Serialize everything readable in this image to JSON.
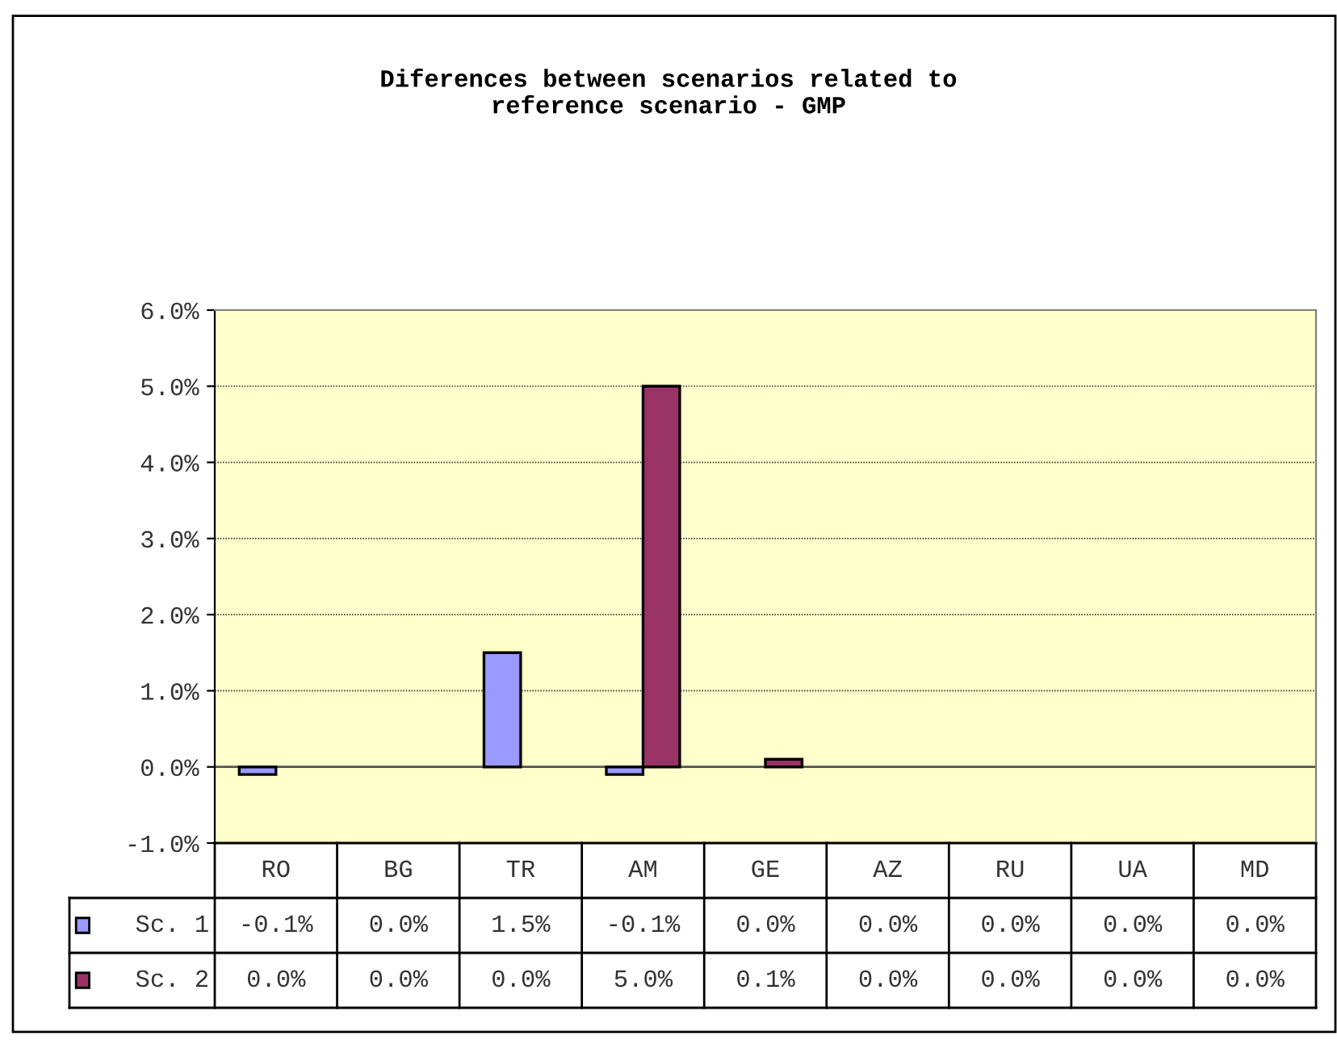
{
  "chart_data": {
    "type": "bar",
    "title": "Diferences between scenarios related to reference scenario - GMP",
    "categories": [
      "RO",
      "BG",
      "TR",
      "AM",
      "GE",
      "AZ",
      "RU",
      "UA",
      "MD"
    ],
    "series": [
      {
        "name": "Sc. 1",
        "color": "#9999ff",
        "values": [
          -0.1,
          0.0,
          1.5,
          -0.1,
          0.0,
          0.0,
          0.0,
          0.0,
          0.0
        ],
        "value_labels": [
          "-0.1%",
          "0.0%",
          "1.5%",
          "-0.1%",
          "0.0%",
          "0.0%",
          "0.0%",
          "0.0%",
          "0.0%"
        ]
      },
      {
        "name": "Sc. 2",
        "color": "#993366",
        "values": [
          0.0,
          0.0,
          0.0,
          5.0,
          0.1,
          0.0,
          0.0,
          0.0,
          0.0
        ],
        "value_labels": [
          "0.0%",
          "0.0%",
          "0.0%",
          "5.0%",
          "0.1%",
          "0.0%",
          "0.0%",
          "0.0%",
          "0.0%"
        ]
      }
    ],
    "ylim": [
      -1,
      6
    ],
    "yticks": [
      {
        "value": -1,
        "label": "-1.0%"
      },
      {
        "value": 0,
        "label": "0.0%"
      },
      {
        "value": 1,
        "label": "1.0%"
      },
      {
        "value": 2,
        "label": "2.0%"
      },
      {
        "value": 3,
        "label": "3.0%"
      },
      {
        "value": 4,
        "label": "4.0%"
      },
      {
        "value": 5,
        "label": "5.0%"
      },
      {
        "value": 6,
        "label": "6.0%"
      }
    ],
    "grid": "y",
    "legend": "bottom left"
  }
}
